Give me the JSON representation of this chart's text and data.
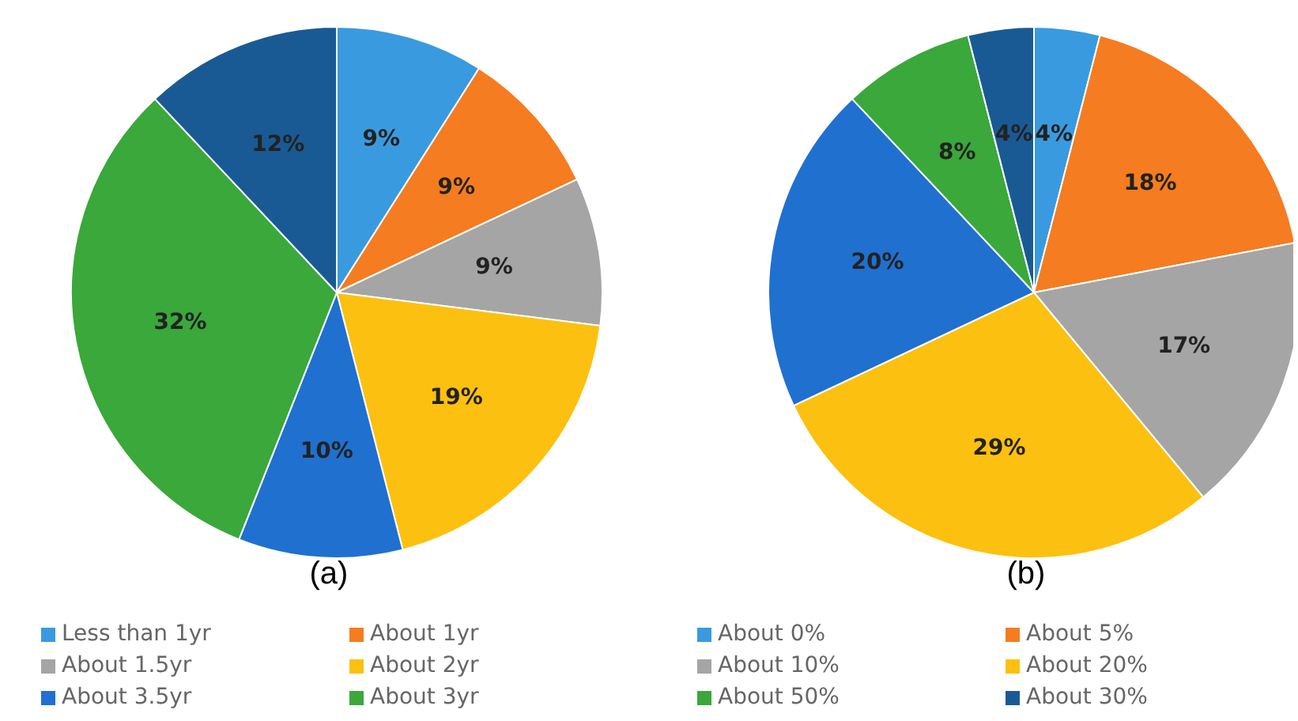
{
  "chart_data": [
    {
      "type": "pie",
      "title": "(a)",
      "categories": [
        "Less than 1yr",
        "About 1yr",
        "About 1.5yr",
        "About 2yr",
        "About 3.5yr",
        "About 3yr",
        null
      ],
      "values": [
        9,
        9,
        9,
        19,
        10,
        32,
        12
      ],
      "colors": [
        "#3a9ae0",
        "#f57c20",
        "#a5a5a5",
        "#fcc010",
        "#2070d0",
        "#3aa83a",
        "#1a5a94"
      ],
      "value_labels": [
        "9%",
        "9%",
        "9%",
        "19%",
        "10%",
        "32%",
        "12%"
      ],
      "legend": "bottom"
    },
    {
      "type": "pie",
      "title": "(b)",
      "categories": [
        "About 0%",
        "About 5%",
        "About 10%",
        "About 20%",
        null,
        "About 50%",
        "About 30%"
      ],
      "values": [
        4,
        18,
        17,
        29,
        20,
        8,
        4
      ],
      "colors": [
        "#3a9ae0",
        "#f57c20",
        "#a5a5a5",
        "#fcc010",
        "#2070d0",
        "#3aa83a",
        "#1a5a94"
      ],
      "value_labels": [
        "4%",
        "18%",
        "17%",
        "29%",
        "20%",
        "8%",
        "4%"
      ],
      "legend": "bottom"
    }
  ]
}
